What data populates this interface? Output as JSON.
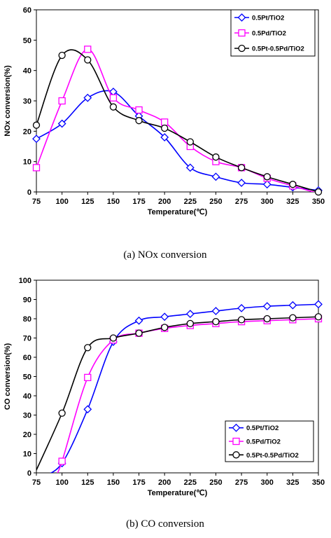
{
  "chart_data": [
    {
      "type": "line",
      "title": "",
      "caption": "(a)  NOx  conversion",
      "xlabel": "Temperature(℃)",
      "ylabel": "NOx conversion(%)",
      "xlim": [
        75,
        350
      ],
      "ylim": [
        0,
        60
      ],
      "x_ticks": [
        "75",
        "100",
        "125",
        "150",
        "175",
        "200",
        "225",
        "250",
        "275",
        "300",
        "325",
        "350"
      ],
      "y_ticks": [
        "0",
        "10",
        "20",
        "30",
        "40",
        "50",
        "60"
      ],
      "legend_position": "top-right",
      "x": [
        75,
        100,
        125,
        150,
        175,
        200,
        225,
        250,
        275,
        300,
        325,
        350
      ],
      "series": [
        {
          "name": "0.5Pt/TiO2",
          "color": "#0000ff",
          "marker": "diamond",
          "values": [
            17.5,
            22.5,
            31,
            33,
            25,
            18,
            8,
            5,
            3,
            2.5,
            1.5,
            0.5
          ]
        },
        {
          "name": "0.5Pd/TiO2",
          "color": "#ff00ff",
          "marker": "square",
          "values": [
            8,
            30,
            47,
            31,
            27,
            23,
            15,
            10,
            8,
            4.5,
            2,
            -0.5
          ]
        },
        {
          "name": "0.5Pt-0.5Pd/TiO2",
          "color": "#000000",
          "marker": "circle",
          "values": [
            22,
            45,
            43.5,
            28,
            23.5,
            21,
            16.5,
            11.5,
            8,
            5,
            2.5,
            0
          ]
        }
      ]
    },
    {
      "type": "line",
      "title": "",
      "caption": "(b)  CO  conversion",
      "xlabel": "Temperature(℃)",
      "ylabel": "CO conversion(%)",
      "xlim": [
        75,
        350
      ],
      "ylim": [
        0,
        100
      ],
      "x_ticks": [
        "75",
        "100",
        "125",
        "150",
        "175",
        "200",
        "225",
        "250",
        "275",
        "300",
        "325",
        "350"
      ],
      "y_ticks": [
        "0",
        "10",
        "20",
        "30",
        "40",
        "50",
        "60",
        "70",
        "80",
        "90",
        "100"
      ],
      "legend_position": "bottom-right",
      "x": [
        100,
        125,
        150,
        175,
        200,
        225,
        250,
        275,
        300,
        325,
        350
      ],
      "series": [
        {
          "name": "0.5Pt/TiO2",
          "color": "#0000ff",
          "marker": "diamond",
          "values": [
            5,
            33,
            68,
            79,
            81,
            82.5,
            84,
            85.5,
            86.5,
            87,
            87.5
          ]
        },
        {
          "name": "0.5Pd/TiO2",
          "color": "#ff00ff",
          "marker": "square",
          "values": [
            6,
            49.5,
            69,
            72.5,
            75,
            76.5,
            77.5,
            78.5,
            79,
            79.5,
            80
          ]
        },
        {
          "name": "0.5Pt-0.5Pd/TiO2",
          "color": "#000000",
          "marker": "circle",
          "values": [
            31,
            65,
            70,
            72.5,
            75.5,
            77.5,
            78.5,
            79.5,
            80,
            80.5,
            81
          ]
        }
      ]
    }
  ]
}
